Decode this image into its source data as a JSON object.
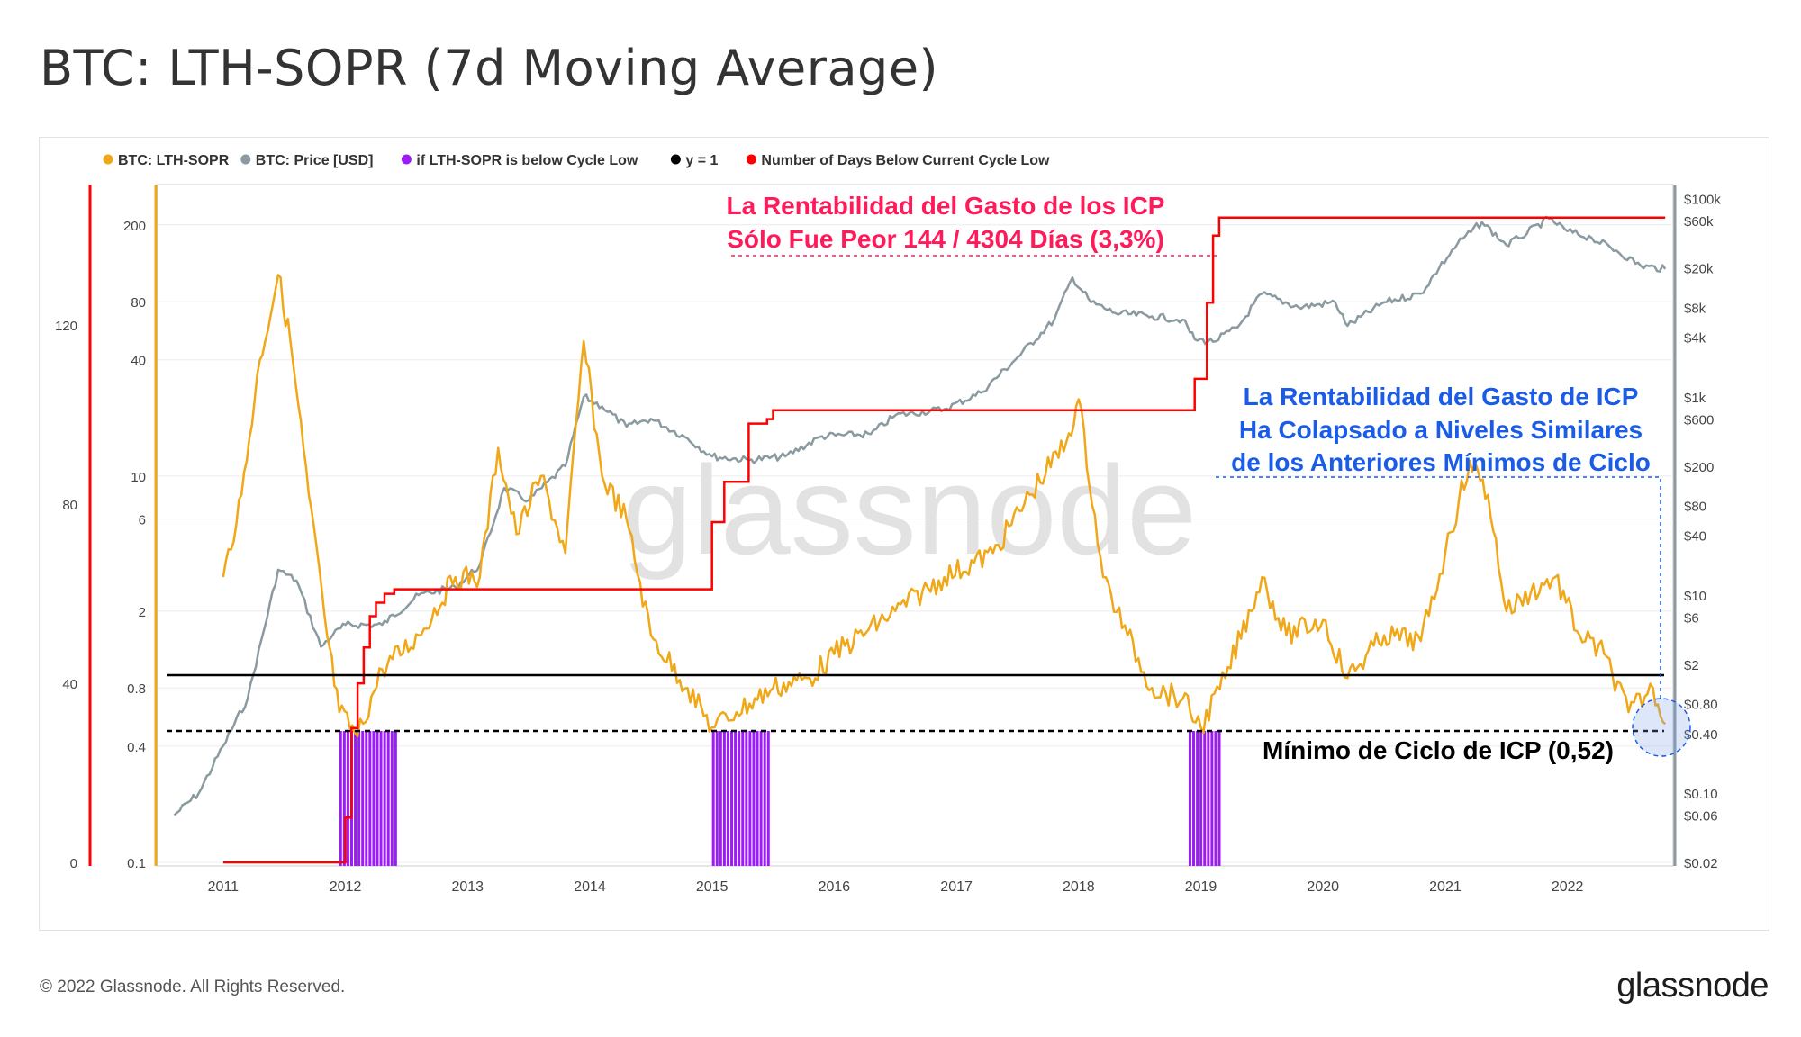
{
  "page_title": "BTC: LTH-SOPR (7d Moving Average)",
  "footer": {
    "copyright": "© 2022 Glassnode. All Rights Reserved.",
    "logo": "glassnode"
  },
  "watermark": "glassnode",
  "colors": {
    "sopr": "#f0a818",
    "price": "#8a9aa0",
    "below": "#9b1cf5",
    "y1": "#000000",
    "days": "#ff0000",
    "pink": "#ff1a5a",
    "blue": "#1a5ce8"
  },
  "chart_data": {
    "type": "line",
    "title": "BTC: LTH-SOPR (7d Moving Average)",
    "x_ticks": [
      "2011",
      "2012",
      "2013",
      "2014",
      "2015",
      "2016",
      "2017",
      "2018",
      "2019",
      "2020",
      "2021",
      "2022"
    ],
    "legend": [
      {
        "label": "BTC: LTH-SOPR",
        "color": "#f0a818"
      },
      {
        "label": "BTC: Price [USD]",
        "color": "#8a9aa0"
      },
      {
        "label": "if LTH-SOPR is below Cycle Low",
        "color": "#9b1cf5"
      },
      {
        "label": "y = 1",
        "color": "#000000"
      },
      {
        "label": "Number of Days Below Current Cycle Low",
        "color": "#ff0000"
      }
    ],
    "axes": {
      "days_axis": {
        "ticks": [
          "0",
          "40",
          "80",
          "120"
        ],
        "range": [
          0,
          150
        ]
      },
      "sopr_axis": {
        "ticks": [
          "0.1",
          "0.4",
          "0.8",
          "2",
          "6",
          "10",
          "40",
          "80",
          "200"
        ],
        "scale": "log",
        "range": [
          0.1,
          300
        ]
      },
      "price_axis": {
        "ticks": [
          "$0.02",
          "$0.06",
          "$0.10",
          "$0.40",
          "$0.80",
          "$2",
          "$6",
          "$10",
          "$40",
          "$80",
          "$200",
          "$600",
          "$1k",
          "$4k",
          "$8k",
          "$20k",
          "$60k",
          "$100k"
        ],
        "scale": "log",
        "range": [
          0.02,
          120000
        ]
      }
    },
    "series": [
      {
        "name": "BTC: Price [USD]",
        "x": [
          2010.6,
          2010.8,
          2011.0,
          2011.2,
          2011.45,
          2011.6,
          2011.8,
          2011.9,
          2012.0,
          2012.3,
          2012.6,
          2012.9,
          2013.1,
          2013.3,
          2013.5,
          2013.8,
          2013.95,
          2014.1,
          2014.3,
          2014.5,
          2014.8,
          2015.0,
          2015.3,
          2015.6,
          2015.9,
          2016.3,
          2016.5,
          2016.9,
          2017.2,
          2017.5,
          2017.8,
          2017.95,
          2018.1,
          2018.3,
          2018.6,
          2018.85,
          2018.95,
          2019.1,
          2019.3,
          2019.5,
          2019.8,
          2020.1,
          2020.2,
          2020.5,
          2020.8,
          2020.95,
          2021.1,
          2021.3,
          2021.5,
          2021.6,
          2021.85,
          2022.0,
          2022.2,
          2022.4,
          2022.6,
          2022.8
        ],
        "values": [
          0.06,
          0.1,
          0.3,
          0.9,
          18,
          14,
          3,
          4,
          5,
          5,
          10,
          12,
          20,
          120,
          90,
          200,
          1000,
          800,
          500,
          600,
          380,
          250,
          230,
          250,
          400,
          420,
          650,
          750,
          1100,
          2500,
          6000,
          16000,
          9000,
          7000,
          6500,
          6000,
          3800,
          3600,
          5000,
          11000,
          8000,
          9000,
          5200,
          9000,
          11000,
          20000,
          35000,
          58000,
          34000,
          40000,
          63000,
          47000,
          40000,
          30000,
          21000,
          19500
        ]
      },
      {
        "name": "BTC: LTH-SOPR",
        "x": [
          2011.0,
          2011.15,
          2011.3,
          2011.45,
          2011.55,
          2011.7,
          2011.85,
          2011.95,
          2012.1,
          2012.3,
          2012.6,
          2012.9,
          2013.1,
          2013.25,
          2013.4,
          2013.6,
          2013.8,
          2013.95,
          2014.1,
          2014.3,
          2014.5,
          2014.8,
          2015.0,
          2015.2,
          2015.5,
          2015.8,
          2016.0,
          2016.5,
          2016.9,
          2017.3,
          2017.6,
          2017.9,
          2018.0,
          2018.2,
          2018.4,
          2018.6,
          2018.85,
          2019.0,
          2019.2,
          2019.5,
          2019.7,
          2020.0,
          2020.2,
          2020.5,
          2020.8,
          2021.0,
          2021.2,
          2021.35,
          2021.5,
          2021.7,
          2021.9,
          2022.1,
          2022.3,
          2022.5,
          2022.7,
          2022.8
        ],
        "values": [
          3,
          8,
          40,
          110,
          50,
          8,
          1.5,
          0.6,
          0.45,
          1.0,
          1.5,
          3,
          3,
          14,
          5,
          10,
          4,
          50,
          10,
          6,
          1.5,
          0.8,
          0.5,
          0.6,
          0.8,
          0.9,
          1.2,
          2,
          3,
          4,
          8,
          15,
          25,
          3,
          1.5,
          0.8,
          0.7,
          0.5,
          0.9,
          3,
          1.5,
          1.8,
          0.9,
          1.5,
          1.4,
          4,
          12,
          8,
          2,
          2.5,
          3,
          1.5,
          1.2,
          0.6,
          0.8,
          0.52
        ]
      },
      {
        "name": "Number of Days Below Current Cycle Low",
        "x": [
          2011.0,
          2011.92,
          2012.0,
          2012.05,
          2012.1,
          2012.15,
          2012.2,
          2012.25,
          2012.32,
          2012.4,
          2014.8,
          2015.0,
          2015.1,
          2015.3,
          2015.45,
          2015.5,
          2016.0,
          2018.0,
          2018.85,
          2018.95,
          2019.05,
          2019.1,
          2019.15,
          2022.8
        ],
        "values": [
          0,
          0,
          10,
          30,
          40,
          48,
          55,
          58,
          60,
          61,
          61,
          76,
          85,
          98,
          99,
          101,
          101,
          101,
          101,
          108,
          125,
          140,
          144,
          144
        ]
      }
    ],
    "below_cycle_low_periods": [
      "2011.95-2012.4",
      "2015.0-2015.45",
      "2018.9-2019.15"
    ],
    "horizontal_lines": [
      {
        "label": "y = 1",
        "value": 1
      },
      {
        "label": "Mínimo de Ciclo de ICP (0,52)",
        "value": 0.52
      }
    ],
    "annotations": {
      "pink_line1": "La Rentabilidad del Gasto de los ICP",
      "pink_line2": "Sólo Fue Peor 144 / 4304 Días (3,3%)",
      "blue_line1": "La Rentabilidad del Gasto de ICP",
      "blue_line2": "Ha Colapsado a Niveles Similares",
      "blue_line3": "de los Anteriores Mínimos de Ciclo",
      "cycle_low": "Mínimo de Ciclo de ICP (0,52)"
    }
  }
}
